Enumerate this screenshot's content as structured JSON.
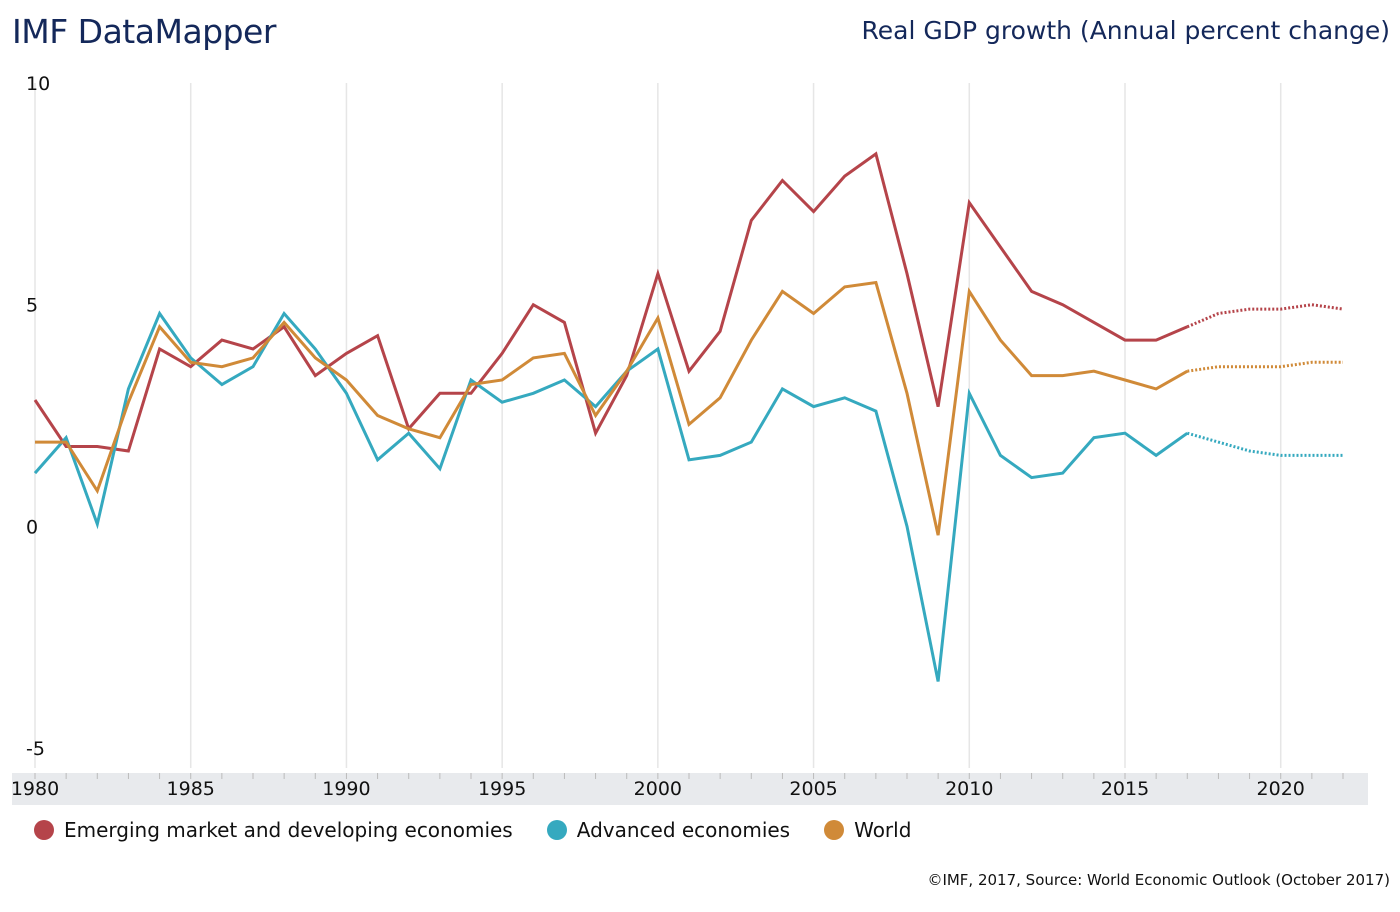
{
  "header": {
    "brand": "IMF DataMapper",
    "title": "Real GDP growth (Annual percent change)"
  },
  "footer": {
    "source": "©IMF, 2017, Source: World Economic Outlook (October 2017)"
  },
  "chart_data": {
    "type": "line",
    "title": "Real GDP growth (Annual percent change)",
    "xlabel": "",
    "ylabel": "",
    "ylim": [
      -5,
      10
    ],
    "xlim": [
      1980,
      2022
    ],
    "yticks": [
      "10",
      "5",
      "0",
      "-5"
    ],
    "ytick_values": [
      10,
      5,
      0,
      -5
    ],
    "xticks": [
      "1980",
      "1985",
      "1990",
      "1995",
      "2000",
      "2005",
      "2010",
      "2015",
      "2020"
    ],
    "xtick_values": [
      1980,
      1985,
      1990,
      1995,
      2000,
      2005,
      2010,
      2015,
      2020
    ],
    "grid": "vertical",
    "legend_position": "bottom-left",
    "projection_start": 2017,
    "x": [
      1980,
      1981,
      1982,
      1983,
      1984,
      1985,
      1986,
      1987,
      1988,
      1989,
      1990,
      1991,
      1992,
      1993,
      1994,
      1995,
      1996,
      1997,
      1998,
      1999,
      2000,
      2001,
      2002,
      2003,
      2004,
      2005,
      2006,
      2007,
      2008,
      2009,
      2010,
      2011,
      2012,
      2013,
      2014,
      2015,
      2016,
      2017,
      2018,
      2019,
      2020,
      2021,
      2022
    ],
    "series": [
      {
        "name": "Emerging market and developing economies",
        "color": "#b5444a",
        "values": [
          2.85,
          1.8,
          1.8,
          1.7,
          4.0,
          3.6,
          4.2,
          4.0,
          4.5,
          3.4,
          3.9,
          4.3,
          2.2,
          3.0,
          3.0,
          3.9,
          5.0,
          4.6,
          2.1,
          3.4,
          5.7,
          3.5,
          4.4,
          6.9,
          7.8,
          7.1,
          7.9,
          8.4,
          5.7,
          2.7,
          7.3,
          6.3,
          5.3,
          5.0,
          4.6,
          4.2,
          4.2,
          4.5,
          4.8,
          4.9,
          4.9,
          5.0,
          4.9
        ]
      },
      {
        "name": "Advanced economies",
        "color": "#35a9bf",
        "values": [
          1.2,
          2.0,
          0.05,
          3.1,
          4.8,
          3.8,
          3.2,
          3.6,
          4.8,
          4.0,
          3.0,
          1.5,
          2.1,
          1.3,
          3.3,
          2.8,
          3.0,
          3.3,
          2.7,
          3.5,
          4.0,
          1.5,
          1.6,
          1.9,
          3.1,
          2.7,
          2.9,
          2.6,
          0.0,
          -3.5,
          3.0,
          1.6,
          1.1,
          1.2,
          2.0,
          2.1,
          1.6,
          2.1,
          1.9,
          1.7,
          1.6,
          1.6,
          1.6
        ]
      },
      {
        "name": "World",
        "color": "#d08a38",
        "values": [
          1.9,
          1.9,
          0.8,
          2.8,
          4.5,
          3.7,
          3.6,
          3.8,
          4.6,
          3.8,
          3.3,
          2.5,
          2.2,
          2.0,
          3.2,
          3.3,
          3.8,
          3.9,
          2.5,
          3.5,
          4.7,
          2.3,
          2.9,
          4.2,
          5.3,
          4.8,
          5.4,
          5.5,
          3.0,
          -0.2,
          5.3,
          4.2,
          3.4,
          3.4,
          3.5,
          3.3,
          3.1,
          3.5,
          3.6,
          3.6,
          3.6,
          3.7,
          3.7
        ]
      }
    ]
  }
}
